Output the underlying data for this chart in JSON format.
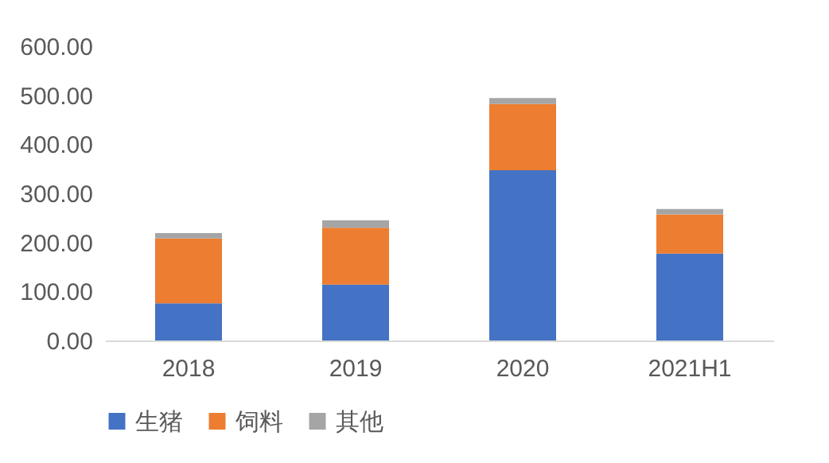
{
  "chart_data": {
    "type": "bar",
    "stacked": true,
    "categories": [
      "2018",
      "2019",
      "2020",
      "2021H1"
    ],
    "series": [
      {
        "name": "生猪",
        "color": "#4472c4",
        "values": [
          76,
          114,
          347,
          177
        ]
      },
      {
        "name": "饲料",
        "color": "#ed7d31",
        "values": [
          132,
          116,
          135,
          80
        ]
      },
      {
        "name": "其他",
        "color": "#a5a5a5",
        "values": [
          11,
          15,
          12,
          11
        ]
      }
    ],
    "ylim": [
      0,
      600
    ],
    "yticks": [
      {
        "value": 0,
        "label": "0.00"
      },
      {
        "value": 100,
        "label": "100.00"
      },
      {
        "value": 200,
        "label": "200.00"
      },
      {
        "value": 300,
        "label": "300.00"
      },
      {
        "value": 400,
        "label": "400.00"
      },
      {
        "value": 500,
        "label": "500.00"
      },
      {
        "value": 600,
        "label": "600.00"
      }
    ],
    "grid": false,
    "legend": "bottom"
  }
}
